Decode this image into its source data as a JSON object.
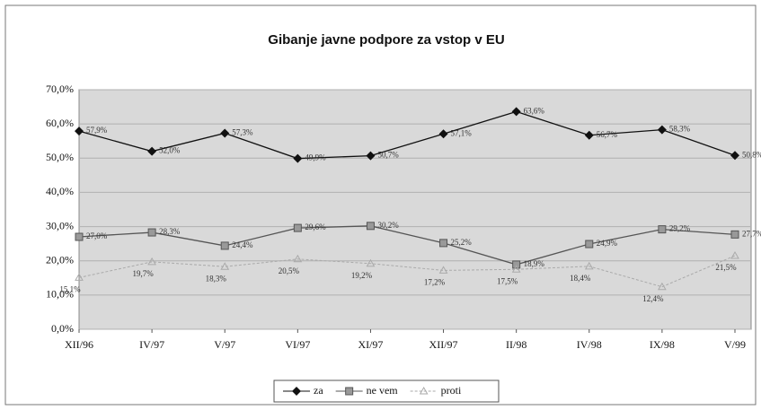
{
  "chart_data": {
    "type": "line",
    "title": "Gibanje javne podpore za vstop v EU",
    "categories": [
      "XII/96",
      "IV/97",
      "V/97",
      "VI/97",
      "XI/97",
      "XII/97",
      "II/98",
      "IV/98",
      "IX/98",
      "V/99"
    ],
    "series": [
      {
        "name": "za",
        "color": "#111111",
        "values": [
          57.9,
          52.0,
          57.3,
          49.9,
          50.7,
          57.1,
          63.6,
          56.7,
          58.3,
          50.8
        ],
        "value_labels": [
          "57,9%",
          "52,0%",
          "57,3%",
          "49,9%",
          "50,7%",
          "57,1%",
          "63,6%",
          "56,7%",
          "58,3%",
          "50,8%"
        ]
      },
      {
        "name": "ne vem",
        "color": "#555555",
        "values": [
          27.0,
          28.3,
          24.4,
          29.6,
          30.2,
          25.2,
          18.9,
          24.9,
          29.2,
          27.7
        ],
        "value_labels": [
          "27,0%",
          "28,3%",
          "24,4%",
          "29,6%",
          "30,2%",
          "25,2%",
          "18,9%",
          "24,9%",
          "29,2%",
          "27,7%"
        ]
      },
      {
        "name": "proti",
        "color": "#aaaaaa",
        "values": [
          15.1,
          19.7,
          18.3,
          20.5,
          19.2,
          17.2,
          17.5,
          18.4,
          12.4,
          21.5
        ],
        "value_labels": [
          "15,1%",
          "19,7%",
          "18,3%",
          "20,5%",
          "19,2%",
          "17,2%",
          "17,5%",
          "18,4%",
          "12,4%",
          "21,5%"
        ]
      }
    ],
    "ylim": [
      0,
      70
    ],
    "yticks": [
      {
        "value": 0,
        "label": "0,0%"
      },
      {
        "value": 10,
        "label": "10,0%"
      },
      {
        "value": 20,
        "label": "20,0%"
      },
      {
        "value": 30,
        "label": "30,0%"
      },
      {
        "value": 40,
        "label": "40,0%"
      },
      {
        "value": 50,
        "label": "50,0%"
      },
      {
        "value": 60,
        "label": "60,0%"
      },
      {
        "value": 70,
        "label": "70,0%"
      }
    ],
    "grid": true,
    "legend": "bottom"
  }
}
